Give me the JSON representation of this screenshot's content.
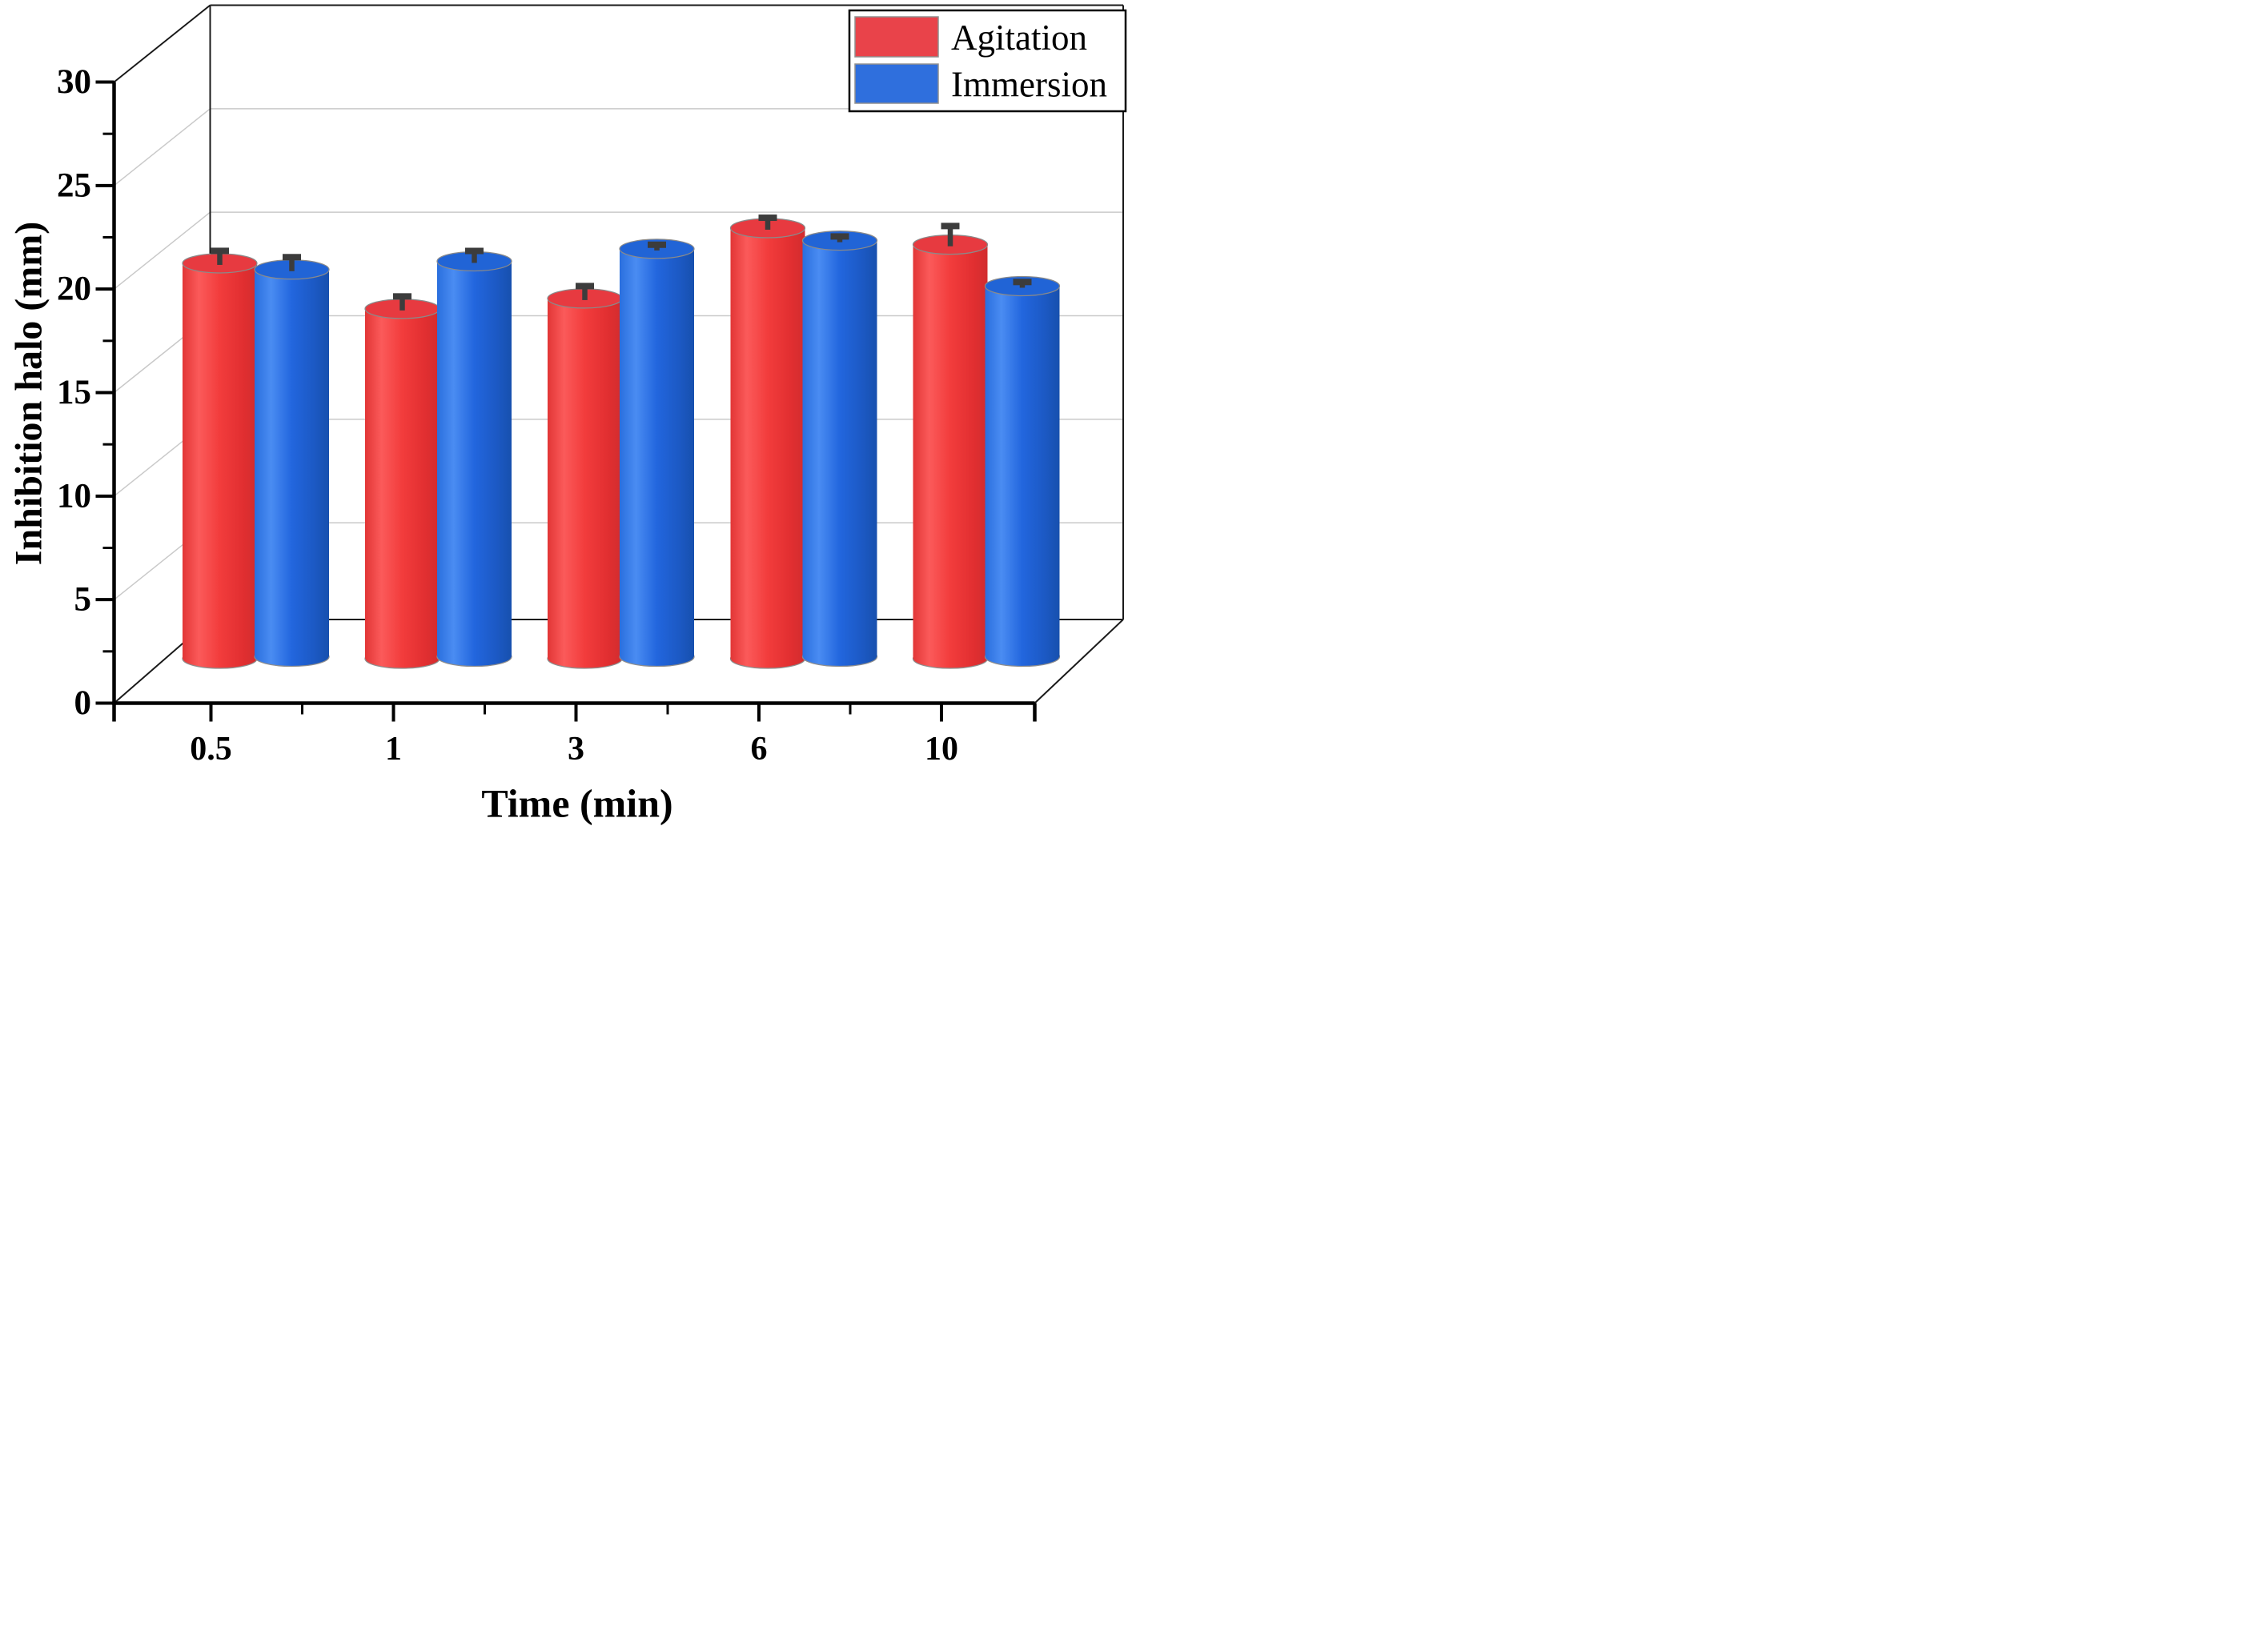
{
  "chart_data": {
    "type": "bar",
    "variant": "3d-cylinder-column",
    "title": "",
    "xlabel": "Time (min)",
    "ylabel": "Inhibition halo (mm)",
    "categories": [
      "0.5",
      "1",
      "3",
      "6",
      "10"
    ],
    "series": [
      {
        "name": "Agitation",
        "values": [
          19.1,
          16.9,
          17.4,
          20.8,
          20.0
        ],
        "errors_plus": [
          0.6,
          0.6,
          0.6,
          0.5,
          0.9
        ],
        "color": "#ee3e3f",
        "top_color": "#e73a40",
        "legend_color": "#e9434a"
      },
      {
        "name": "Immersion",
        "values": [
          18.7,
          19.1,
          19.7,
          20.1,
          17.9
        ],
        "errors_plus": [
          0.6,
          0.5,
          0.2,
          0.2,
          0.2
        ],
        "color": "#2268de",
        "top_color": "#2164d6",
        "legend_color": "#2f6fdd"
      }
    ],
    "ylim": [
      0,
      30
    ],
    "yticks": [
      0,
      5,
      10,
      15,
      20,
      25,
      30
    ],
    "ytick_minor_step": 2.5,
    "grid": "horizontal depth gridlines on back wall at major y ticks",
    "legend_position": "top-right",
    "error_bar_color": "#3c3c3c",
    "gridline_color": "#c9c9c9",
    "axis_color": "#000000"
  }
}
